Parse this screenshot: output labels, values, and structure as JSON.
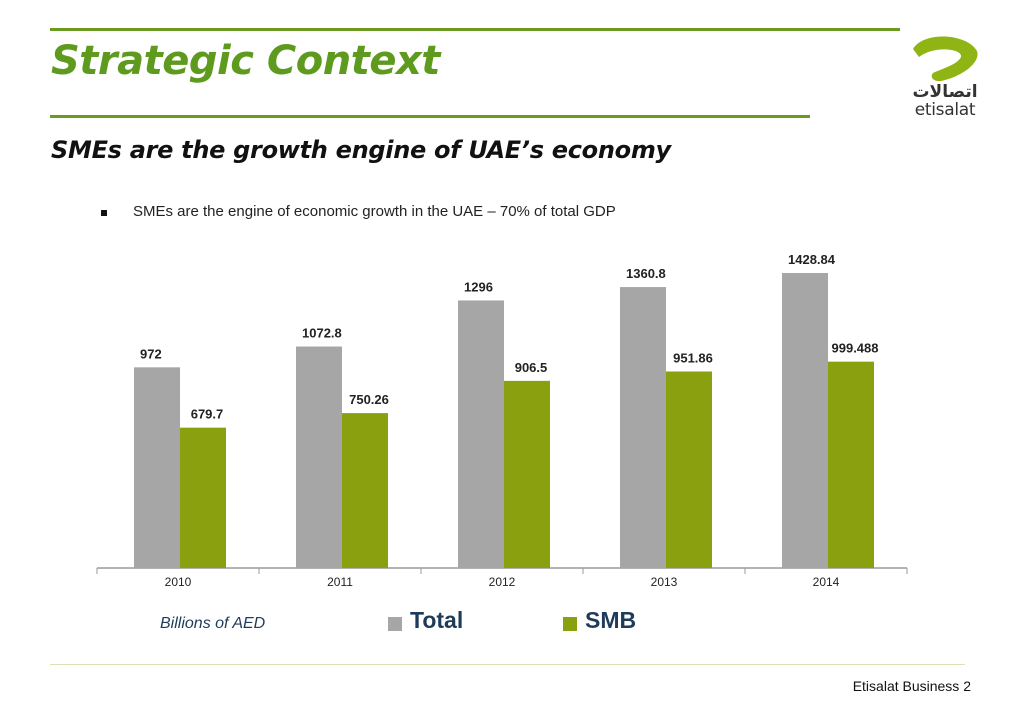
{
  "slide": {
    "title": "Strategic Context",
    "subtitle": "SMEs are the growth engine of UAE’s economy",
    "bullet": "SMEs are the engine of economic growth in the UAE – 70% of total GDP",
    "footer": "Etisalat Business 2"
  },
  "logo": {
    "arabic": "اتصالات",
    "latin": "etisalat",
    "color": "#8fb514"
  },
  "chart_data": {
    "type": "bar",
    "categories": [
      "2010",
      "2011",
      "2012",
      "2013",
      "2014"
    ],
    "series": [
      {
        "name": "Total",
        "values": [
          972,
          1072.8,
          1296,
          1360.8,
          1428.84
        ],
        "labels": [
          "972",
          "1072.8",
          "1296",
          "1360.8",
          "1428.84"
        ],
        "color": "#a6a6a6"
      },
      {
        "name": "SMB",
        "values": [
          679.7,
          750.26,
          906.5,
          951.86,
          999.488
        ],
        "labels": [
          "679.7",
          "750.26",
          "906.5",
          "951.86",
          "999.488"
        ],
        "color": "#8aa00f"
      }
    ],
    "unit_label": "Billions of AED",
    "ylim": [
      0,
      1550
    ],
    "grid": false,
    "legend": "bottom"
  }
}
